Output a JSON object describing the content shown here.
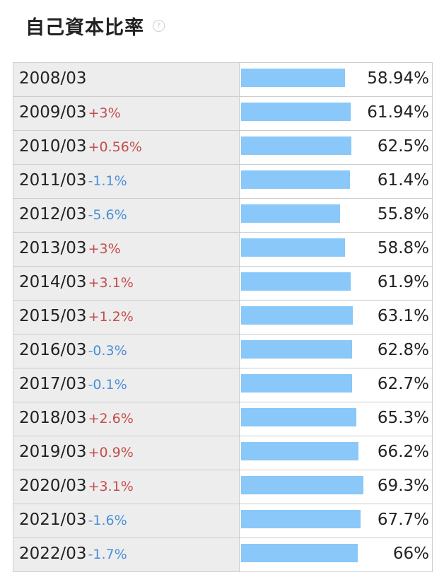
{
  "title": "自己資本比率",
  "help_icon": "question-circle-icon",
  "colors": {
    "bar": "#89c8f8",
    "positive": "#c44d4d",
    "negative": "#4a8fd8",
    "label_bg": "#ededed",
    "border": "#cdcdcd"
  },
  "chart_data": {
    "type": "bar",
    "orientation": "horizontal",
    "title": "自己資本比率",
    "unit": "%",
    "xlim": [
      0,
      80
    ],
    "categories": [
      "2008/03",
      "2009/03",
      "2010/03",
      "2011/03",
      "2012/03",
      "2013/03",
      "2014/03",
      "2015/03",
      "2016/03",
      "2017/03",
      "2018/03",
      "2019/03",
      "2020/03",
      "2021/03",
      "2022/03"
    ],
    "values": [
      58.94,
      61.94,
      62.5,
      61.4,
      55.8,
      58.8,
      61.9,
      63.1,
      62.8,
      62.7,
      65.3,
      66.2,
      69.3,
      67.7,
      66
    ],
    "value_labels": [
      "58.94%",
      "61.94%",
      "62.5%",
      "61.4%",
      "55.8%",
      "58.8%",
      "61.9%",
      "63.1%",
      "62.8%",
      "62.7%",
      "65.3%",
      "66.2%",
      "69.3%",
      "67.7%",
      "66%"
    ],
    "changes": [
      "",
      "+3%",
      "+0.56%",
      "-1.1%",
      "-5.6%",
      "+3%",
      "+3.1%",
      "+1.2%",
      "-0.3%",
      "-0.1%",
      "+2.6%",
      "+0.9%",
      "+3.1%",
      "-1.6%",
      "-1.7%"
    ]
  }
}
